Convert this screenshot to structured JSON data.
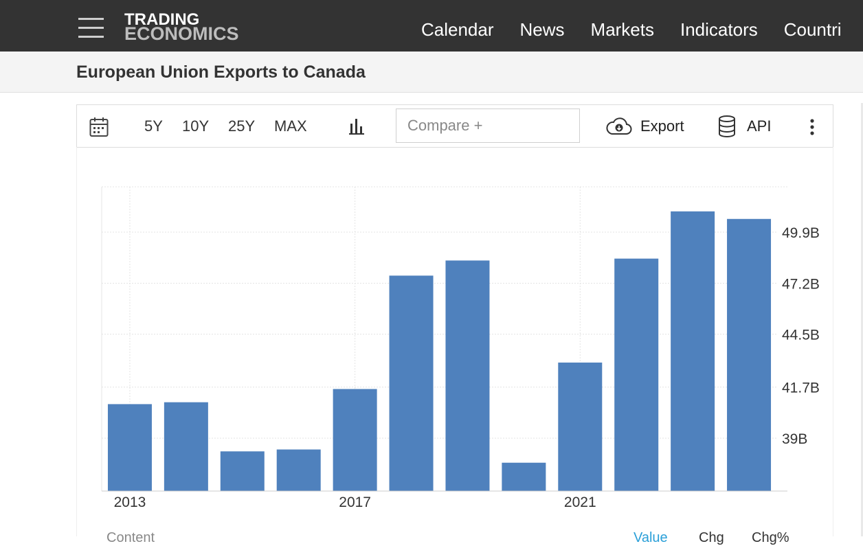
{
  "header": {
    "logo_line1": "TRADING",
    "logo_line2": "ECONOMICS",
    "nav": [
      "Calendar",
      "News",
      "Markets",
      "Indicators",
      "Countri"
    ]
  },
  "page": {
    "title": "European Union Exports to Canada"
  },
  "toolbar": {
    "ranges": [
      "5Y",
      "10Y",
      "25Y",
      "MAX"
    ],
    "compare_placeholder": "Compare +",
    "export_label": "Export",
    "api_label": "API"
  },
  "bottom": {
    "left_label": "Content",
    "tabs": [
      "Value",
      "Chg",
      "Chg%"
    ]
  },
  "colors": {
    "bar": "#4f81bd",
    "topbar": "#333333"
  },
  "chart_data": {
    "type": "bar",
    "title": "",
    "xlabel": "",
    "ylabel": "",
    "categories": [
      "2013",
      "2014",
      "2015",
      "2016",
      "2017",
      "2018",
      "2019",
      "2020",
      "2021",
      "2022",
      "2023",
      "2024"
    ],
    "values": [
      40.8,
      40.9,
      38.3,
      38.4,
      41.6,
      47.6,
      48.4,
      37.7,
      43.0,
      48.5,
      51.0,
      50.6
    ],
    "ylim": [
      36.2,
      52.3
    ],
    "yticks": [
      "39B",
      "41.7B",
      "44.5B",
      "47.2B",
      "49.9B"
    ],
    "ytick_values": [
      39.0,
      41.7,
      44.5,
      47.2,
      49.9
    ],
    "xtick_labels": [
      "2013",
      "2017",
      "2021"
    ],
    "grid": true,
    "yaxis_side": "right"
  }
}
